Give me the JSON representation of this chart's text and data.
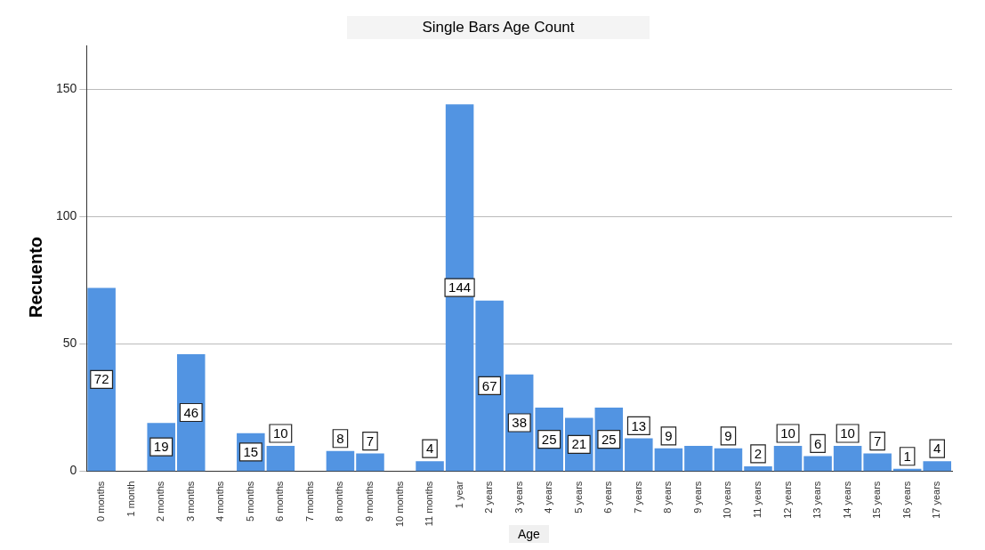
{
  "chart_data": {
    "type": "bar",
    "title": "Single Bars Age Count",
    "xlabel": "Age",
    "ylabel": "Recuento",
    "categories": [
      "0 months",
      "1 month",
      "2 months",
      "3 months",
      "4 months",
      "5 months",
      "6 months",
      "7 months",
      "8 months",
      "9 months",
      "10 months",
      "11 months",
      "1 year",
      "2 years",
      "3 years",
      "4 years",
      "5 years",
      "6 years",
      "7 years",
      "8 years",
      "9 years",
      "10 years",
      "11 years",
      "12 years",
      "13 years",
      "14 years",
      "15 years",
      "16 years",
      "17 years"
    ],
    "values": [
      72,
      0,
      19,
      46,
      0,
      15,
      10,
      0,
      8,
      7,
      0,
      4,
      144,
      67,
      38,
      25,
      21,
      25,
      13,
      9,
      10,
      9,
      2,
      10,
      6,
      10,
      7,
      1,
      4
    ],
    "value_labels": [
      "72",
      null,
      "19",
      "46",
      null,
      "15",
      "10",
      null,
      "8",
      "7",
      null,
      "4",
      "144",
      "67",
      "38",
      "25",
      "21",
      "25",
      "13",
      "9",
      null,
      "9",
      "2",
      "10",
      "6",
      "10",
      "7",
      "1",
      "4"
    ],
    "color": "#5294e2",
    "ylim": [
      0,
      167
    ],
    "yticks": [
      0,
      50,
      100,
      150
    ],
    "grid": "y",
    "legend": false
  }
}
